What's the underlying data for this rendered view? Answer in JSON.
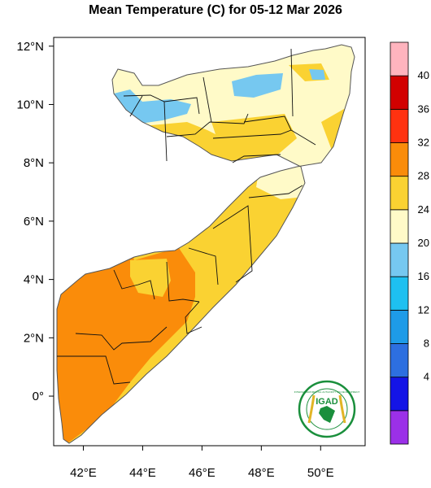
{
  "title": "Mean Temperature (C) for 05-12 Mar 2026",
  "map": {
    "type": "choropleth-map",
    "lon_range": [
      41,
      51.5
    ],
    "lat_range": [
      -1.7,
      12.3
    ],
    "x_ticks": [
      {
        "value": 42,
        "label": "42°E"
      },
      {
        "value": 44,
        "label": "44°E"
      },
      {
        "value": 46,
        "label": "46°E"
      },
      {
        "value": 48,
        "label": "48°E"
      },
      {
        "value": 50,
        "label": "50°E"
      }
    ],
    "y_ticks": [
      {
        "value": 12,
        "label": "12°N"
      },
      {
        "value": 10,
        "label": "10°N"
      },
      {
        "value": 8,
        "label": "8°N"
      },
      {
        "value": 6,
        "label": "6°N"
      },
      {
        "value": 4,
        "label": "4°N"
      },
      {
        "value": 2,
        "label": "2°N"
      },
      {
        "value": 0,
        "label": "0°"
      }
    ]
  },
  "colorbar": {
    "bins": [
      {
        "color": "#9b30e8"
      },
      {
        "color": "#1414e6",
        "label": "4"
      },
      {
        "color": "#2d6fe0",
        "label": "8"
      },
      {
        "color": "#1e9be8",
        "label": "12"
      },
      {
        "color": "#1ec0f0",
        "label": "16"
      },
      {
        "color": "#76c8f0",
        "label": "20"
      },
      {
        "color": "#fffac8",
        "label": "24"
      },
      {
        "color": "#fad232",
        "label": "28"
      },
      {
        "color": "#fa8c0a",
        "label": "32"
      },
      {
        "color": "#ff3210",
        "label": "36"
      },
      {
        "color": "#d20000",
        "label": "40"
      },
      {
        "color": "#ffb4be"
      }
    ]
  },
  "logo": {
    "text": "IGAD",
    "ring_text": "INTERGOVERNMENTAL AUTHORITY ON DEVELOPMENT",
    "colors": {
      "green": "#1a8f3c",
      "gold": "#e2b526"
    }
  }
}
